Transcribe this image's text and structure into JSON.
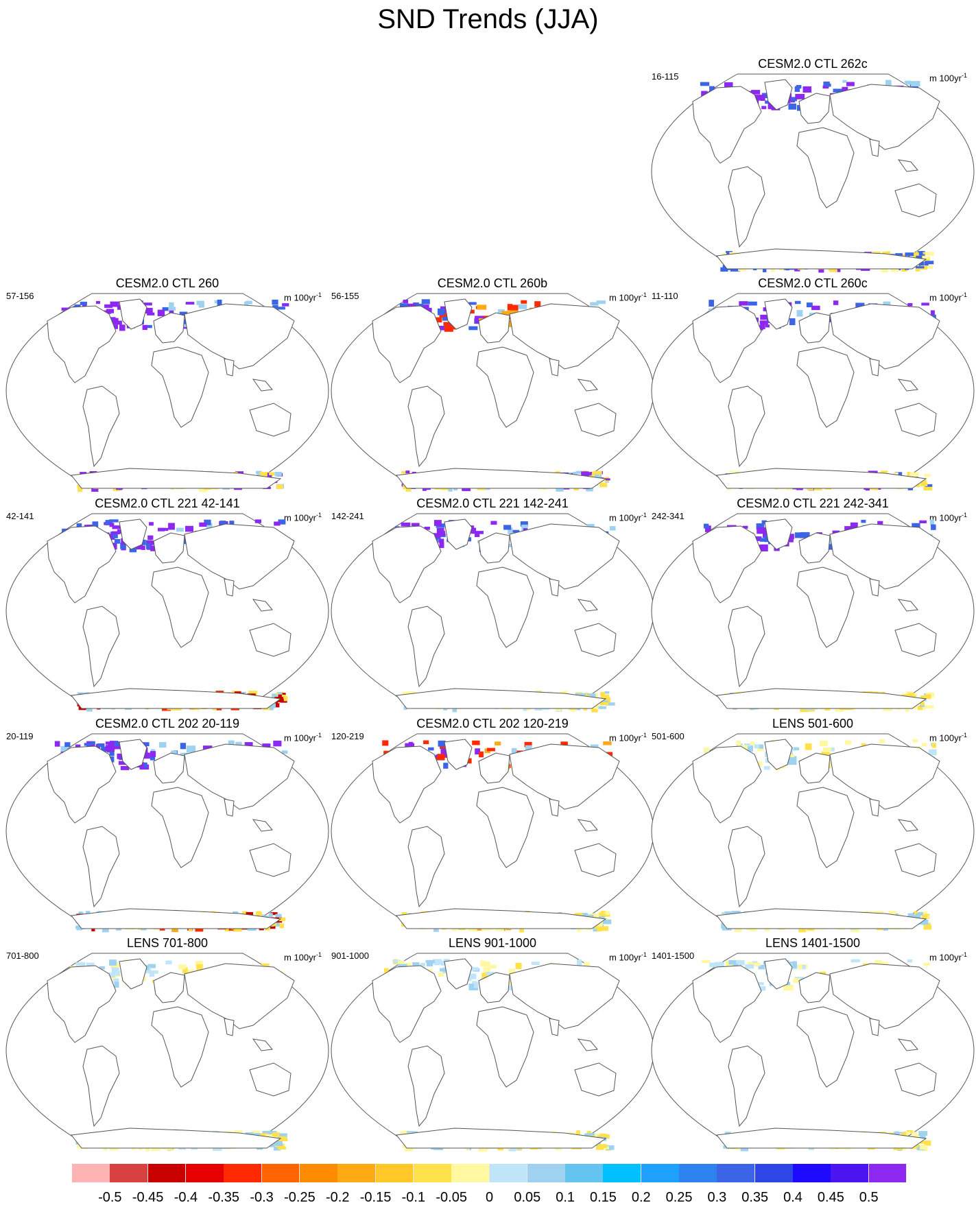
{
  "title": "SND Trends (JJA)",
  "units": {
    "base": "m 100yr",
    "exp": "-1"
  },
  "panels": [
    {
      "title": "CESM2.0 CTL 262c",
      "years": "16-115",
      "nh": "purple",
      "sh": "purple"
    },
    {
      "title": "CESM2.0 CTL 260",
      "years": "57-156",
      "nh": "purple",
      "sh": "yellowblue"
    },
    {
      "title": "CESM2.0 CTL 260b",
      "years": "56-155",
      "nh": "mixed",
      "sh": "yellowblue"
    },
    {
      "title": "CESM2.0 CTL 260c",
      "years": "11-110",
      "nh": "purple",
      "sh": "purple"
    },
    {
      "title": "CESM2.0 CTL 221 42-141",
      "years": "42-141",
      "nh": "purple",
      "sh": "red"
    },
    {
      "title": "CESM2.0 CTL 221 142-241",
      "years": "142-241",
      "nh": "purple",
      "sh": "light"
    },
    {
      "title": "CESM2.0 CTL 221 242-341",
      "years": "242-341",
      "nh": "purple",
      "sh": "light"
    },
    {
      "title": "CESM2.0 CTL 202 20-119",
      "years": "20-119",
      "nh": "purple",
      "sh": "red"
    },
    {
      "title": "CESM2.0 CTL 202 120-219",
      "years": "120-219",
      "nh": "mixed",
      "sh": "yellow"
    },
    {
      "title": "LENS 501-600",
      "years": "501-600",
      "nh": "light",
      "sh": "light"
    },
    {
      "title": "LENS 701-800",
      "years": "701-800",
      "nh": "light",
      "sh": "light"
    },
    {
      "title": "LENS 901-1000",
      "years": "901-1000",
      "nh": "light",
      "sh": "light"
    },
    {
      "title": "LENS 1401-1500",
      "years": "1401-1500",
      "nh": "light",
      "sh": "light"
    }
  ],
  "colorbar": {
    "labels": [
      "-0.5",
      "-0.45",
      "-0.4",
      "-0.35",
      "-0.3",
      "-0.25",
      "-0.2",
      "-0.15",
      "-0.1",
      "-0.05",
      "0",
      "0.05",
      "0.1",
      "0.15",
      "0.2",
      "0.25",
      "0.3",
      "0.35",
      "0.4",
      "0.45",
      "0.5"
    ],
    "colors": [
      "#ffb3b3",
      "#d94040",
      "#c80000",
      "#e60000",
      "#ff2a00",
      "#ff6400",
      "#ff8c00",
      "#ffaa14",
      "#ffc828",
      "#ffe14b",
      "#fff8a0",
      "#c0e4f8",
      "#9ed2f0",
      "#64c4f0",
      "#00c0ff",
      "#1ea0ff",
      "#2d82f0",
      "#3c64e6",
      "#2d46e6",
      "#1e0aff",
      "#4b14f0",
      "#8c28f0"
    ]
  },
  "palette": {
    "purple": "#8c28f0",
    "blue": "#3c64e6",
    "lightblue": "#9ed2f0",
    "paleblue": "#c0e4f8",
    "yellow": "#ffe14b",
    "paleyellow": "#fff8a0",
    "orange": "#ffaa14",
    "red": "#ff2a00",
    "darkred": "#c80000"
  }
}
